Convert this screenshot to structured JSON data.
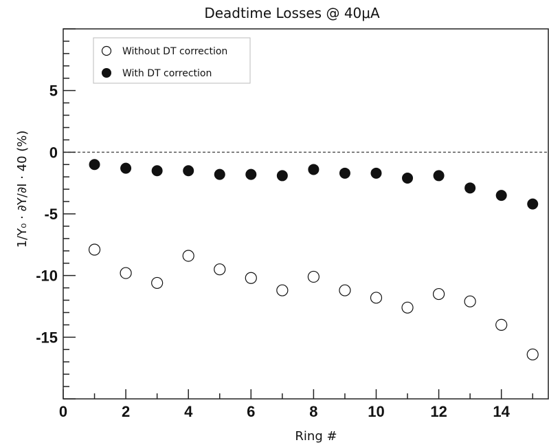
{
  "chart_data": {
    "type": "scatter",
    "title": "Deadtime Losses @ 40μA",
    "xlabel": "Ring #",
    "ylabel": "1/Y₀ · ∂Y/∂I · 40   (%)",
    "xlim": [
      0,
      15.5
    ],
    "ylim": [
      -20,
      10
    ],
    "xticks": [
      0,
      2,
      4,
      6,
      8,
      10,
      12,
      14
    ],
    "yticks": [
      -15,
      -10,
      -5,
      0,
      5
    ],
    "reference_line": {
      "y": 0,
      "style": "dashed"
    },
    "legend_position": "top-left",
    "grid": false,
    "series": [
      {
        "name": "Without DT correction",
        "marker": "open-circle",
        "x": [
          1,
          2,
          3,
          4,
          5,
          6,
          7,
          8,
          9,
          10,
          11,
          12,
          13,
          14,
          15
        ],
        "y": [
          -7.9,
          -9.8,
          -10.6,
          -8.4,
          -9.5,
          -10.2,
          -11.2,
          -10.1,
          -11.2,
          -11.8,
          -12.6,
          -11.5,
          -12.1,
          -14.0,
          -16.4
        ]
      },
      {
        "name": "With DT correction",
        "marker": "filled-circle",
        "x": [
          1,
          2,
          3,
          4,
          5,
          6,
          7,
          8,
          9,
          10,
          11,
          12,
          13,
          14,
          15
        ],
        "y": [
          -1.0,
          -1.3,
          -1.5,
          -1.5,
          -1.8,
          -1.8,
          -1.9,
          -1.4,
          -1.7,
          -1.7,
          -2.1,
          -1.9,
          -2.9,
          -3.5,
          -4.2
        ]
      }
    ]
  }
}
